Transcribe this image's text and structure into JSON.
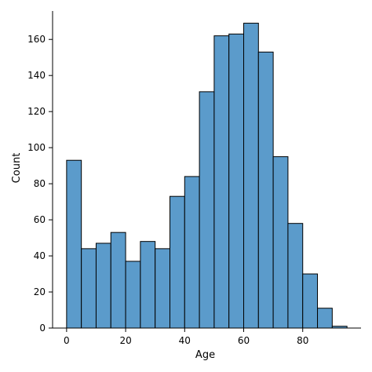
{
  "chart_data": {
    "type": "bar",
    "subtype": "histogram",
    "xlabel": "Age",
    "ylabel": "Count",
    "bin_width": 5,
    "bins": [
      {
        "start": 0,
        "end": 5,
        "count": 93
      },
      {
        "start": 5,
        "end": 10,
        "count": 44
      },
      {
        "start": 10,
        "end": 15,
        "count": 47
      },
      {
        "start": 15,
        "end": 20,
        "count": 53
      },
      {
        "start": 20,
        "end": 25,
        "count": 37
      },
      {
        "start": 25,
        "end": 30,
        "count": 48
      },
      {
        "start": 30,
        "end": 35,
        "count": 44
      },
      {
        "start": 35,
        "end": 40,
        "count": 73
      },
      {
        "start": 40,
        "end": 45,
        "count": 84
      },
      {
        "start": 45,
        "end": 50,
        "count": 131
      },
      {
        "start": 50,
        "end": 55,
        "count": 162
      },
      {
        "start": 55,
        "end": 60,
        "count": 163
      },
      {
        "start": 60,
        "end": 65,
        "count": 169
      },
      {
        "start": 65,
        "end": 70,
        "count": 153
      },
      {
        "start": 70,
        "end": 75,
        "count": 95
      },
      {
        "start": 75,
        "end": 80,
        "count": 58
      },
      {
        "start": 80,
        "end": 85,
        "count": 30
      },
      {
        "start": 85,
        "end": 90,
        "count": 11
      },
      {
        "start": 90,
        "end": 95,
        "count": 1
      }
    ],
    "xlim": [
      -4.75,
      99.75
    ],
    "ylim": [
      0,
      177.5
    ],
    "xticks": [
      0,
      20,
      40,
      60,
      80
    ],
    "yticks": [
      0,
      20,
      40,
      60,
      80,
      100,
      120,
      140,
      160
    ],
    "grid": false,
    "bar_color": "#5b9bcb",
    "edge_color": "#000000"
  }
}
